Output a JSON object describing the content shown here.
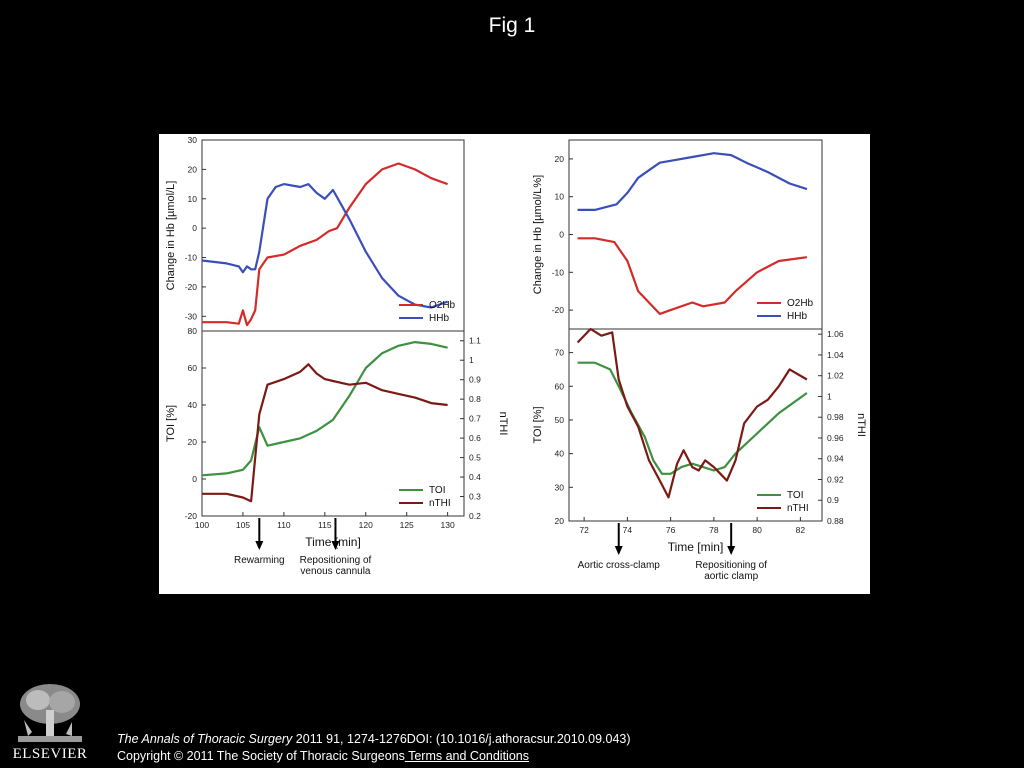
{
  "slide": {
    "title": "Fig 1",
    "citation_journal": "The Annals of Thoracic Surgery",
    "citation_rest": " 2011 91, 1274-1276DOI: (10.1016/j.athoracsur.2010.09.043)",
    "copyright": "Copyright © 2011 The Society of Thoracic Surgeons",
    "terms_link": " Terms and Conditions",
    "logo_text": "ELSEVIER"
  },
  "colors": {
    "o2hb": "#d42a2a",
    "hhb": "#3a4fb8",
    "toi": "#3e9140",
    "nthi": "#7a1a14"
  },
  "chart_data": [
    {
      "type": "line",
      "panel": "left-top",
      "ylabel": "Change in Hb [µmol/L]",
      "xlim": [
        100,
        132
      ],
      "ylim": [
        -35,
        30
      ],
      "yticks": [
        -30,
        -20,
        -10,
        0,
        10,
        20,
        30
      ],
      "legend_position": "bottom-right",
      "series": [
        {
          "name": "O2Hb",
          "x": [
            100,
            103,
            104.5,
            105,
            105.5,
            106,
            106.5,
            107,
            108,
            110,
            112,
            114,
            115.5,
            116.5,
            118,
            120,
            122,
            124,
            126,
            128,
            130
          ],
          "y": [
            -32,
            -32,
            -32.5,
            -28,
            -33,
            -31,
            -28,
            -14,
            -10,
            -9,
            -6,
            -4,
            -1,
            0,
            7,
            15,
            20,
            22,
            20,
            17,
            15
          ]
        },
        {
          "name": "HHb",
          "x": [
            100,
            103,
            104.5,
            105,
            105.5,
            106,
            106.5,
            107,
            108,
            109,
            110,
            112,
            113,
            114,
            115,
            116,
            117,
            118,
            120,
            122,
            124,
            126,
            128,
            130
          ],
          "y": [
            -11,
            -12,
            -13,
            -15,
            -13,
            -14,
            -14,
            -8,
            10,
            14,
            15,
            14,
            15,
            12,
            10,
            13,
            8,
            3,
            -8,
            -17,
            -23,
            -26,
            -27,
            -25
          ]
        }
      ]
    },
    {
      "type": "line",
      "panel": "left-bottom",
      "xlabel": "Time [min]",
      "ylabel": "TOI [%]",
      "ylabel_right": "nTHI",
      "xlim": [
        100,
        132
      ],
      "xticks": [
        100,
        105,
        110,
        115,
        120,
        125,
        130
      ],
      "ylim": [
        -20,
        80
      ],
      "yticks": [
        -20,
        0,
        20,
        40,
        60,
        80
      ],
      "ylim_right": [
        0.2,
        1.15
      ],
      "yticks_right": [
        0.2,
        0.3,
        0.4,
        0.5,
        0.6,
        0.7,
        0.8,
        0.9,
        1.0,
        1.1
      ],
      "legend_position": "bottom-right",
      "series": [
        {
          "name": "TOI",
          "axis": "left",
          "x": [
            100,
            103,
            105,
            106,
            107,
            108,
            110,
            112,
            114,
            116,
            118,
            120,
            122,
            124,
            126,
            128,
            130
          ],
          "y": [
            2,
            3,
            5,
            10,
            28,
            18,
            20,
            22,
            26,
            32,
            45,
            60,
            68,
            72,
            74,
            73,
            71
          ]
        },
        {
          "name": "nTHI",
          "axis": "left",
          "x": [
            100,
            103,
            105,
            106,
            107,
            108,
            110,
            112,
            113,
            114,
            115,
            116,
            118,
            120,
            122,
            124,
            126,
            128,
            130
          ],
          "y": [
            -8,
            -8,
            -10,
            -12,
            35,
            51,
            54,
            58,
            62,
            57,
            54,
            53,
            51,
            52,
            48,
            46,
            44,
            41,
            40
          ]
        }
      ],
      "annotations": [
        {
          "text": "Rewarming",
          "x": 107
        },
        {
          "text": "Repositioning of",
          "text2": "venous cannula",
          "x": 116.3
        }
      ]
    },
    {
      "type": "line",
      "panel": "right-top",
      "ylabel": "Change in Hb [µmol/L%]",
      "xlim": [
        71.3,
        83
      ],
      "ylim": [
        -25,
        25
      ],
      "yticks": [
        -20,
        -10,
        0,
        10,
        20
      ],
      "legend_position": "bottom-right",
      "series": [
        {
          "name": "O2Hb",
          "x": [
            71.7,
            72.5,
            73.4,
            74,
            74.5,
            75.5,
            76,
            77,
            77.5,
            78.5,
            79,
            80,
            81,
            82.3
          ],
          "y": [
            -1,
            -1,
            -2,
            -7,
            -15,
            -21,
            -20,
            -18,
            -19,
            -18,
            -15,
            -10,
            -7,
            -6
          ]
        },
        {
          "name": "HHb",
          "x": [
            71.7,
            72.5,
            73.5,
            74,
            74.5,
            75,
            75.5,
            76,
            77,
            78,
            78.8,
            79.5,
            80.5,
            81.5,
            82.3
          ],
          "y": [
            6.5,
            6.5,
            8,
            11,
            15,
            17,
            19,
            19.5,
            20.5,
            21.5,
            21,
            19,
            16.5,
            13.5,
            12
          ]
        }
      ]
    },
    {
      "type": "line",
      "panel": "right-bottom",
      "xlabel": "Time [min]",
      "ylabel": "TOI [%]",
      "ylabel_right": "nTHI",
      "xlim": [
        71.3,
        83
      ],
      "xticks": [
        72,
        74,
        76,
        78,
        80,
        82
      ],
      "ylim": [
        20,
        77
      ],
      "yticks": [
        20,
        30,
        40,
        50,
        60,
        70
      ],
      "ylim_right": [
        0.88,
        1.065
      ],
      "yticks_right": [
        0.88,
        0.9,
        0.92,
        0.94,
        0.96,
        0.98,
        1.0,
        1.02,
        1.04,
        1.06
      ],
      "legend_position": "bottom-right",
      "series": [
        {
          "name": "TOI",
          "axis": "left",
          "x": [
            71.7,
            72.5,
            73.2,
            73.6,
            74.2,
            74.8,
            75.2,
            75.6,
            76,
            76.5,
            77,
            77.5,
            78,
            78.5,
            79,
            80,
            81,
            82.3
          ],
          "y": [
            67,
            67,
            65,
            60,
            52,
            45,
            38,
            34,
            34,
            36,
            37,
            36,
            35,
            36,
            40,
            46,
            52,
            58
          ]
        },
        {
          "name": "nTHI",
          "axis": "left",
          "x": [
            71.7,
            72.3,
            72.8,
            73.3,
            73.6,
            74,
            74.5,
            75,
            75.5,
            75.9,
            76.3,
            76.6,
            77,
            77.3,
            77.6,
            78,
            78.3,
            78.6,
            79,
            79.4,
            80,
            80.5,
            81,
            81.5,
            82.3
          ],
          "y": [
            73,
            77,
            75,
            76,
            62,
            54,
            48,
            38,
            32,
            27,
            37,
            41,
            36,
            35,
            38,
            36,
            34,
            32,
            38,
            49,
            54,
            56,
            60,
            65,
            62
          ]
        }
      ],
      "annotations": [
        {
          "text": "Aortic cross-clamp",
          "x": 73.6
        },
        {
          "text": "Repositioning of",
          "text2": "aortic clamp",
          "x": 78.8
        }
      ]
    }
  ]
}
